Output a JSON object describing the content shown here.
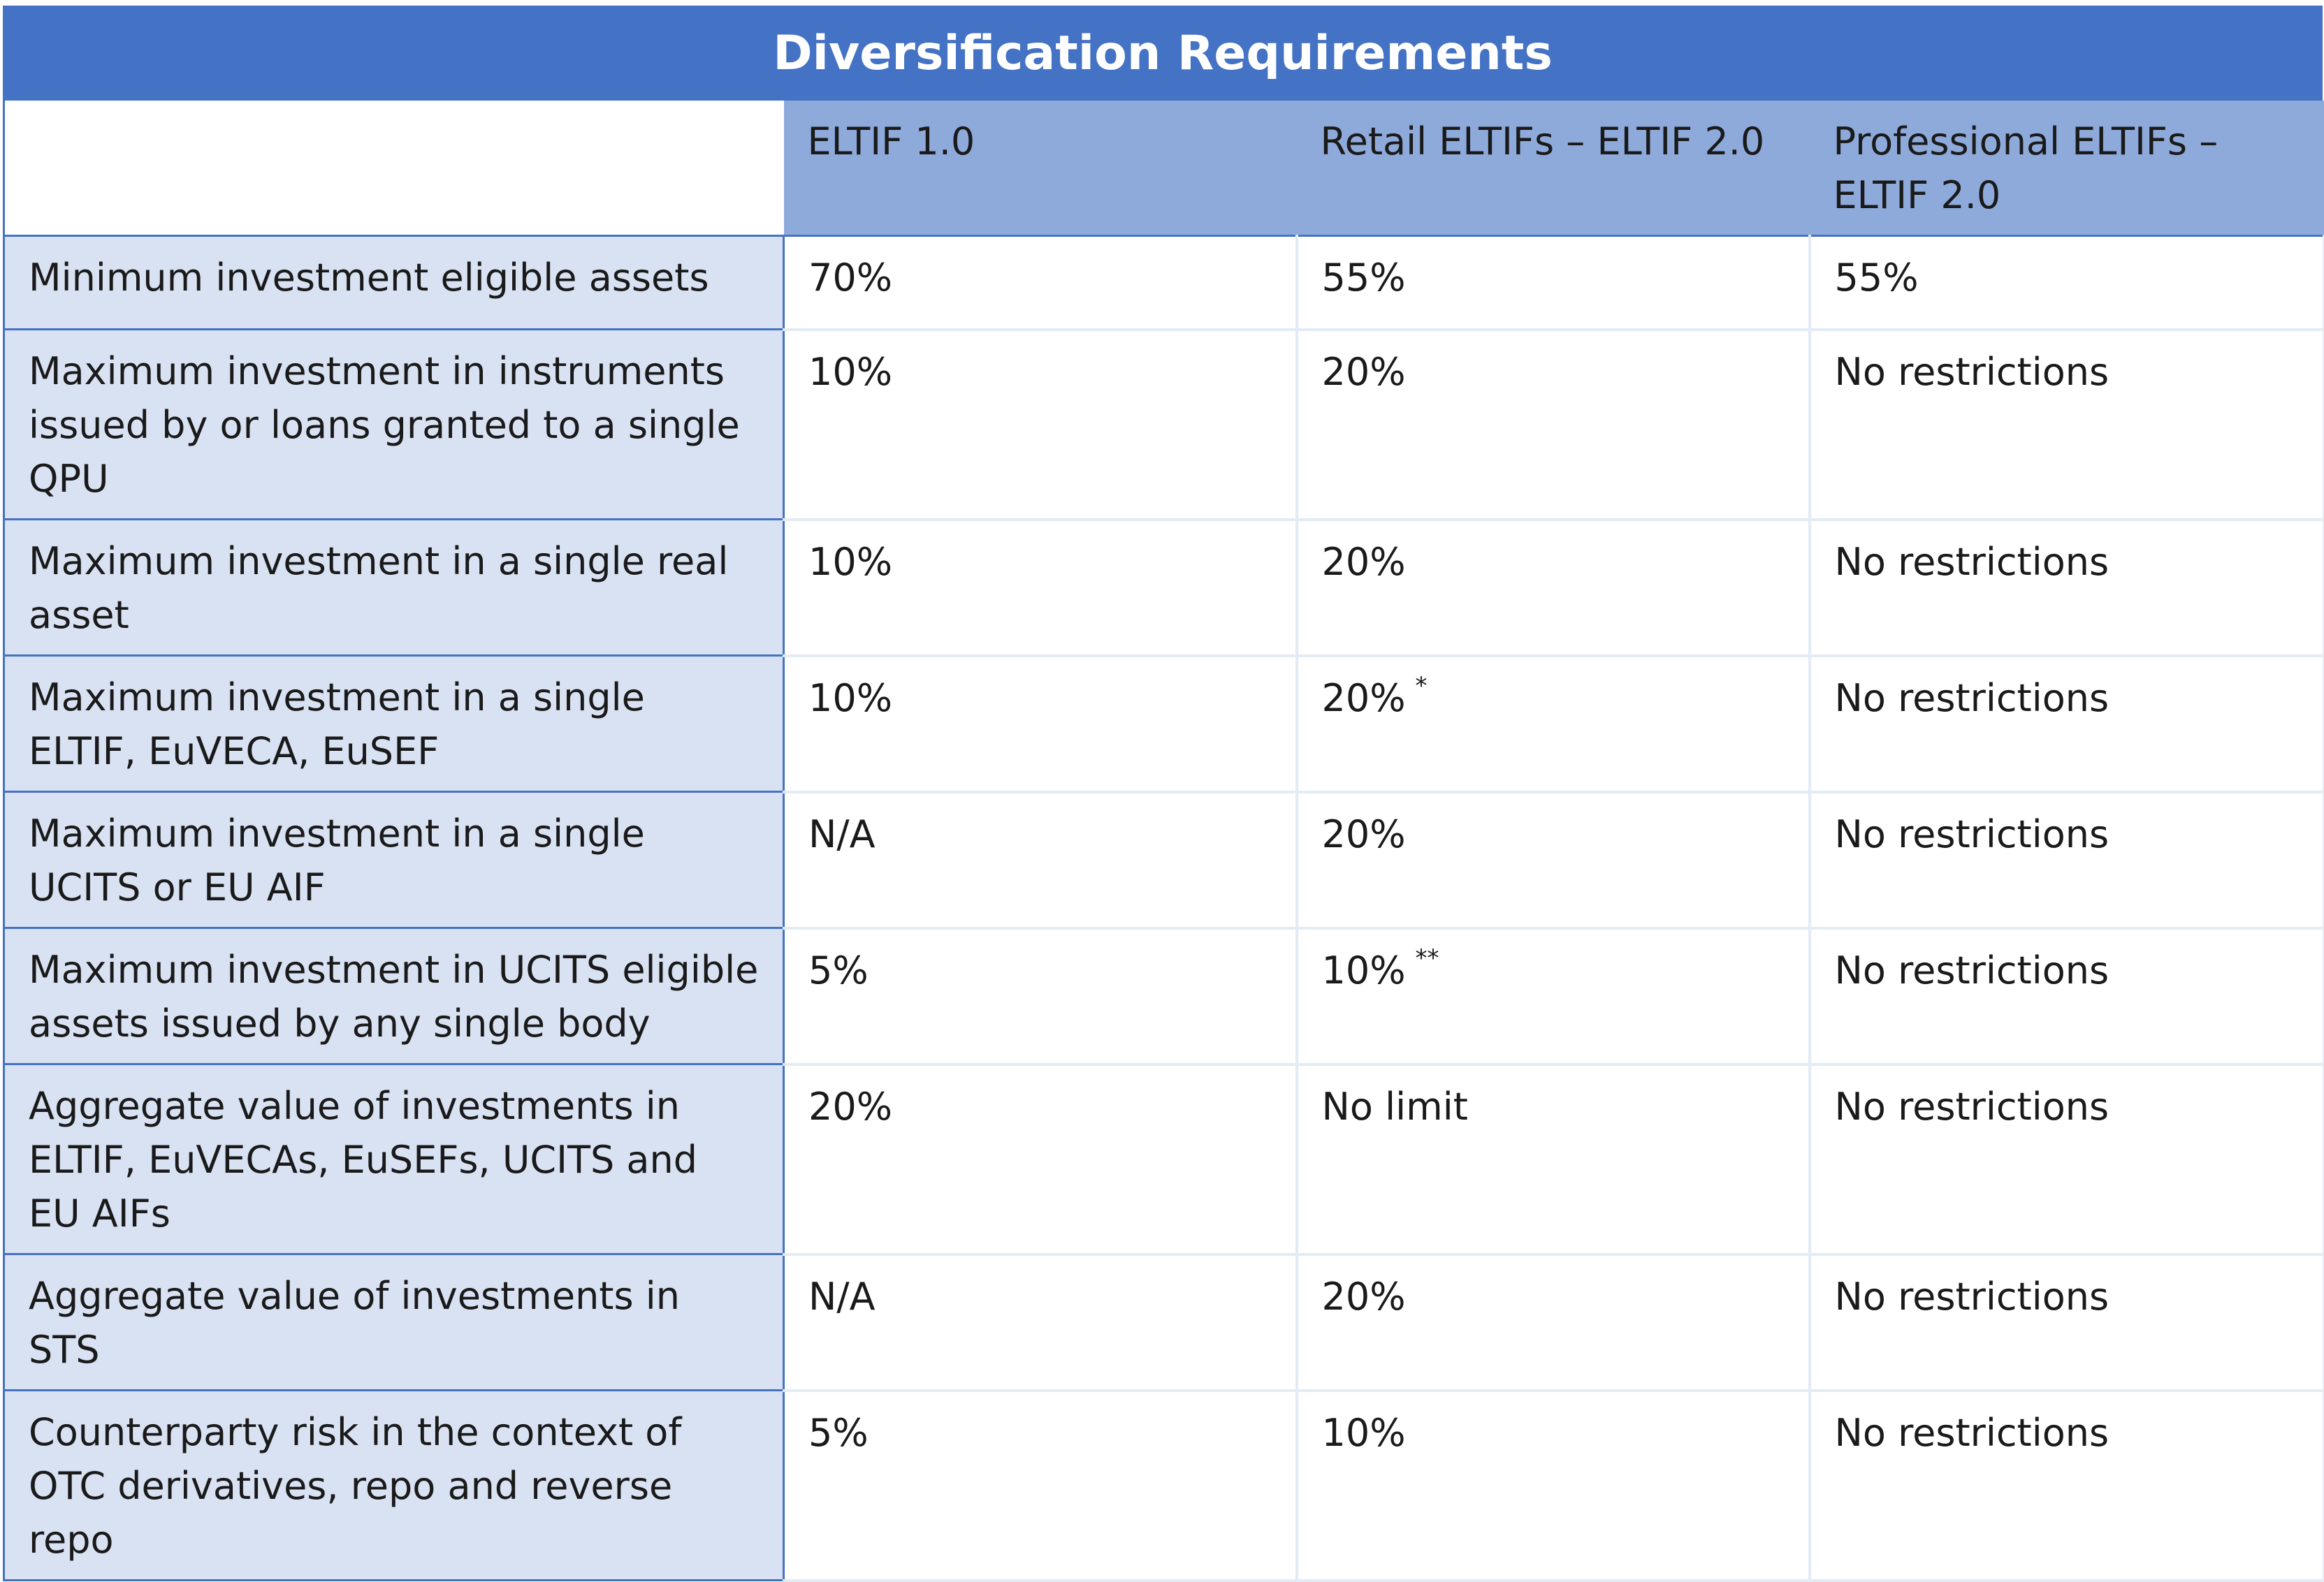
{
  "title": "Diversification Requirements",
  "header": {
    "corner": "",
    "columns": [
      "ELTIF 1.0",
      "Retail ELTIFs – ELTIF 2.0",
      "Professional ELTIFs – ELTIF 2.0"
    ]
  },
  "rows": [
    {
      "label": "Minimum investment eligible assets",
      "eltif1": "70%",
      "retail": "55%",
      "retail_note": "",
      "professional": "55%"
    },
    {
      "label": "Maximum investment in instruments issued by or loans granted to a single QPU",
      "eltif1": "10%",
      "retail": "20%",
      "retail_note": "",
      "professional": "No restrictions"
    },
    {
      "label": "Maximum investment in a single real asset",
      "eltif1": "10%",
      "retail": "20%",
      "retail_note": "",
      "professional": "No restrictions"
    },
    {
      "label": "Maximum investment in a single ELTIF, EuVECA, EuSEF",
      "eltif1": "10%",
      "retail": "20%",
      "retail_note": "*",
      "professional": "No restrictions"
    },
    {
      "label": "Maximum investment in a single UCITS or EU AIF",
      "eltif1": "N/A",
      "retail": "20%",
      "retail_note": "",
      "professional": "No restrictions"
    },
    {
      "label": "Maximum investment in UCITS eligible assets issued by any single body",
      "eltif1": "5%",
      "retail": "10%",
      "retail_note": "**",
      "professional": "No restrictions"
    },
    {
      "label": "Aggregate value of investments in ELTIF, EuVECAs, EuSEFs, UCITS and EU AIFs",
      "eltif1": "20%",
      "retail": "No limit",
      "retail_note": "",
      "professional": "No restrictions"
    },
    {
      "label": "Aggregate value of investments in STS",
      "eltif1": "N/A",
      "retail": "20%",
      "retail_note": "",
      "professional": "No restrictions"
    },
    {
      "label": "Counterparty risk in the context of OTC derivatives, repo and reverse repo",
      "eltif1": "5%",
      "retail": "10%",
      "retail_note": "",
      "professional": "No restrictions"
    }
  ],
  "colors": {
    "title_bg": "#4472c4",
    "header_bg": "#8eaadb",
    "label_bg": "#d9e2f3",
    "cell_bg": "#ffffff",
    "grid": "#e3ebf6"
  }
}
